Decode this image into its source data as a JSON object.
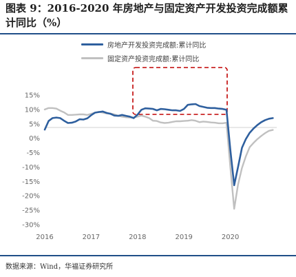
{
  "title": "图表 9：2016-2020 年房地产与固定资产开发投资完成额累计同比（%）",
  "source": "数据来源：Wind，华福证券研究所",
  "colors": {
    "real_estate": "#2e5f9e",
    "fixed_asset": "#c0c0c0",
    "highlight_box": "#c00000"
  },
  "chart_data": {
    "type": "line",
    "title": "图表 9：2016-2020 年房地产与固定资产开发投资完成额累计同比（%）",
    "xlabel": "",
    "ylabel": "",
    "x_tick_labels": [
      "2016",
      "2017",
      "2018",
      "2019",
      "2020"
    ],
    "y_tick_labels": [
      "15%",
      "10%",
      "5%",
      "0%",
      "-5%",
      "-10%",
      "-15%",
      "-20%",
      "-25%",
      "-30%"
    ],
    "ylim": [
      -30,
      15
    ],
    "grid": false,
    "legend_position": "top",
    "annotation": "red dashed box highlighting 2018 to end of 2019",
    "series": [
      {
        "name": "房地产开发投资完成额:累计同比",
        "color": "#2e5f9e",
        "points": [
          [
            "2016-01",
            3.0
          ],
          [
            "2016-02",
            6.0
          ],
          [
            "2016-03",
            7.0
          ],
          [
            "2016-04",
            7.2
          ],
          [
            "2016-05",
            7.0
          ],
          [
            "2016-06",
            6.1
          ],
          [
            "2016-07",
            5.3
          ],
          [
            "2016-08",
            5.4
          ],
          [
            "2016-09",
            5.8
          ],
          [
            "2016-10",
            6.6
          ],
          [
            "2016-11",
            6.5
          ],
          [
            "2016-12",
            6.9
          ],
          [
            "2017-01",
            8.0
          ],
          [
            "2017-02",
            8.9
          ],
          [
            "2017-03",
            9.1
          ],
          [
            "2017-04",
            9.3
          ],
          [
            "2017-05",
            8.8
          ],
          [
            "2017-06",
            8.5
          ],
          [
            "2017-07",
            7.9
          ],
          [
            "2017-08",
            7.8
          ],
          [
            "2017-09",
            8.1
          ],
          [
            "2017-10",
            7.8
          ],
          [
            "2017-11",
            7.5
          ],
          [
            "2017-12",
            7.0
          ],
          [
            "2018-01",
            8.2
          ],
          [
            "2018-02",
            9.9
          ],
          [
            "2018-03",
            10.4
          ],
          [
            "2018-04",
            10.3
          ],
          [
            "2018-05",
            10.2
          ],
          [
            "2018-06",
            9.7
          ],
          [
            "2018-07",
            10.2
          ],
          [
            "2018-08",
            10.1
          ],
          [
            "2018-09",
            9.9
          ],
          [
            "2018-10",
            9.7
          ],
          [
            "2018-11",
            9.7
          ],
          [
            "2018-12",
            9.5
          ],
          [
            "2019-01",
            10.2
          ],
          [
            "2019-02",
            11.6
          ],
          [
            "2019-03",
            11.8
          ],
          [
            "2019-04",
            11.9
          ],
          [
            "2019-05",
            11.2
          ],
          [
            "2019-06",
            10.9
          ],
          [
            "2019-07",
            10.6
          ],
          [
            "2019-08",
            10.5
          ],
          [
            "2019-09",
            10.5
          ],
          [
            "2019-10",
            10.3
          ],
          [
            "2019-11",
            10.2
          ],
          [
            "2019-12",
            9.9
          ],
          [
            "2020-01",
            -4.0
          ],
          [
            "2020-02",
            -16.3
          ],
          [
            "2020-03",
            -10.0
          ],
          [
            "2020-04",
            -3.3
          ],
          [
            "2020-05",
            -0.3
          ],
          [
            "2020-06",
            1.9
          ],
          [
            "2020-07",
            3.4
          ],
          [
            "2020-08",
            4.6
          ],
          [
            "2020-09",
            5.6
          ],
          [
            "2020-10",
            6.3
          ],
          [
            "2020-11",
            6.8
          ],
          [
            "2020-12",
            7.0
          ]
        ]
      },
      {
        "name": "固定资产投资完成额:累计同比",
        "color": "#c0c0c0",
        "points": [
          [
            "2016-01",
            10.0
          ],
          [
            "2016-02",
            10.5
          ],
          [
            "2016-03",
            10.5
          ],
          [
            "2016-04",
            10.3
          ],
          [
            "2016-05",
            9.6
          ],
          [
            "2016-06",
            9.0
          ],
          [
            "2016-07",
            8.1
          ],
          [
            "2016-08",
            8.1
          ],
          [
            "2016-09",
            8.2
          ],
          [
            "2016-10",
            8.3
          ],
          [
            "2016-11",
            8.3
          ],
          [
            "2016-12",
            8.1
          ],
          [
            "2017-01",
            8.5
          ],
          [
            "2017-02",
            8.9
          ],
          [
            "2017-03",
            9.2
          ],
          [
            "2017-04",
            8.9
          ],
          [
            "2017-05",
            8.6
          ],
          [
            "2017-06",
            8.6
          ],
          [
            "2017-07",
            8.3
          ],
          [
            "2017-08",
            7.8
          ],
          [
            "2017-09",
            7.5
          ],
          [
            "2017-10",
            7.3
          ],
          [
            "2017-11",
            7.2
          ],
          [
            "2017-12",
            7.2
          ],
          [
            "2018-01",
            7.5
          ],
          [
            "2018-02",
            7.9
          ],
          [
            "2018-03",
            7.5
          ],
          [
            "2018-04",
            7.0
          ],
          [
            "2018-05",
            6.1
          ],
          [
            "2018-06",
            6.0
          ],
          [
            "2018-07",
            5.5
          ],
          [
            "2018-08",
            5.3
          ],
          [
            "2018-09",
            5.4
          ],
          [
            "2018-10",
            5.7
          ],
          [
            "2018-11",
            5.9
          ],
          [
            "2018-12",
            5.9
          ],
          [
            "2019-01",
            6.0
          ],
          [
            "2019-02",
            6.1
          ],
          [
            "2019-03",
            6.3
          ],
          [
            "2019-04",
            6.1
          ],
          [
            "2019-05",
            5.6
          ],
          [
            "2019-06",
            5.8
          ],
          [
            "2019-07",
            5.7
          ],
          [
            "2019-08",
            5.5
          ],
          [
            "2019-09",
            5.4
          ],
          [
            "2019-10",
            5.2
          ],
          [
            "2019-11",
            5.2
          ],
          [
            "2019-12",
            5.4
          ],
          [
            "2020-01",
            -10.0
          ],
          [
            "2020-02",
            -24.5
          ],
          [
            "2020-03",
            -16.1
          ],
          [
            "2020-04",
            -10.3
          ],
          [
            "2020-05",
            -6.3
          ],
          [
            "2020-06",
            -3.1
          ],
          [
            "2020-07",
            -1.6
          ],
          [
            "2020-08",
            -0.3
          ],
          [
            "2020-09",
            0.8
          ],
          [
            "2020-10",
            1.8
          ],
          [
            "2020-11",
            2.6
          ],
          [
            "2020-12",
            2.9
          ]
        ]
      }
    ]
  }
}
